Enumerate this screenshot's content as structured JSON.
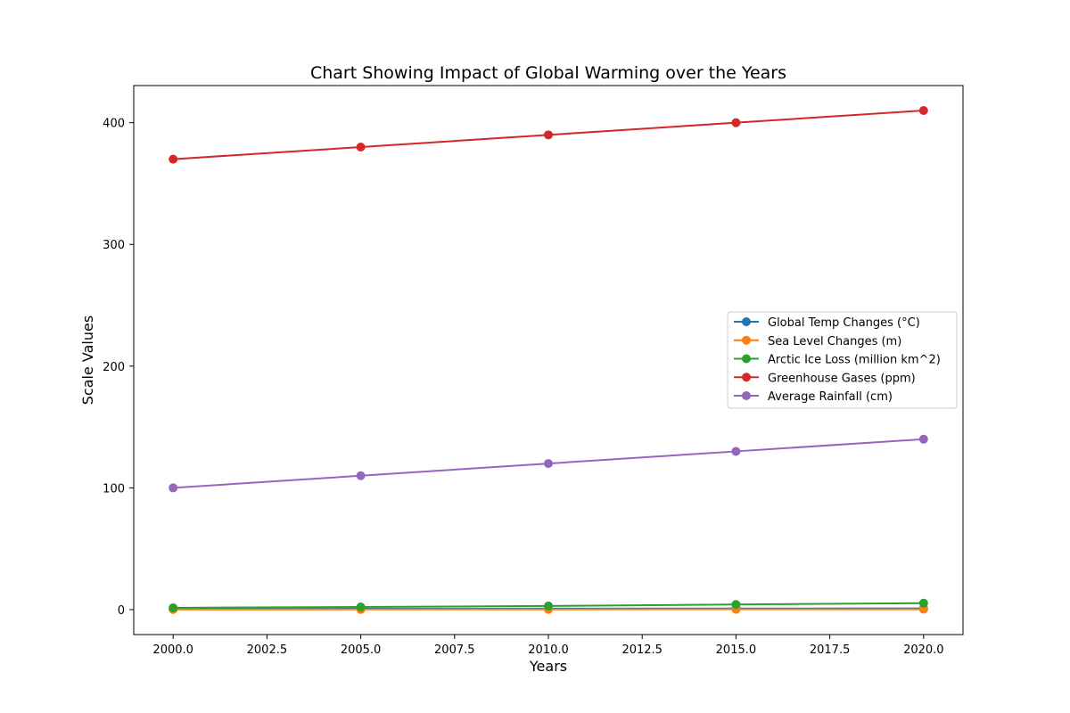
{
  "chart_data": {
    "type": "line",
    "title": "Chart Showing Impact of Global Warming over the Years",
    "xlabel": "Years",
    "ylabel": "Scale Values",
    "x": [
      2000,
      2005,
      2010,
      2015,
      2020
    ],
    "xlim": [
      1998.95,
      2021.05
    ],
    "ylim": [
      -20.5,
      430.5
    ],
    "xticks": [
      2000,
      2002.5,
      2005,
      2007.5,
      2010,
      2012.5,
      2015,
      2017.5,
      2020
    ],
    "xtick_labels": [
      "2000.0",
      "2002.5",
      "2005.0",
      "2007.5",
      "2010.0",
      "2012.5",
      "2015.0",
      "2017.5",
      "2020.0"
    ],
    "yticks": [
      0,
      100,
      200,
      300,
      400
    ],
    "ytick_labels": [
      "0",
      "100",
      "200",
      "300",
      "400"
    ],
    "grid": false,
    "legend_position": "center-right",
    "series": [
      {
        "name": "Global Temp Changes (°C)",
        "color": "#1f77b4",
        "values": [
          0.6,
          0.7,
          0.8,
          0.9,
          1.0
        ]
      },
      {
        "name": "Sea Level Changes (m)",
        "color": "#ff7f0e",
        "values": [
          0.1,
          0.15,
          0.2,
          0.25,
          0.3
        ]
      },
      {
        "name": "Arctic Ice Loss (million km^2)",
        "color": "#2ca02c",
        "values": [
          1.5,
          2.2,
          3.0,
          4.2,
          5.3
        ]
      },
      {
        "name": "Greenhouse Gases (ppm)",
        "color": "#d62728",
        "values": [
          370,
          380,
          390,
          400,
          410
        ]
      },
      {
        "name": "Average Rainfall (cm)",
        "color": "#9467bd",
        "values": [
          100,
          110,
          120,
          130,
          140
        ]
      }
    ]
  }
}
